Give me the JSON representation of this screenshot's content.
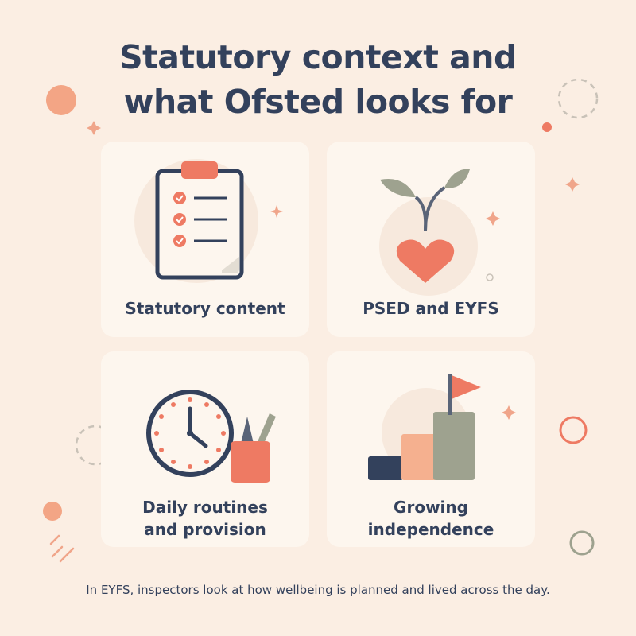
{
  "title_line1": "Statutory context and",
  "title_line2": "what Ofsted looks for",
  "cards": [
    {
      "label": "Statutory content",
      "icon": "clipboard-checklist-icon"
    },
    {
      "label": "PSED and EYFS",
      "icon": "sprout-heart-icon"
    },
    {
      "label_line1": "Daily routines",
      "label_line2": "and provision",
      "icon": "clock-and-pencil-pot-icon"
    },
    {
      "label_line1": "Growing",
      "label_line2": "independence",
      "icon": "steps-with-flag-icon"
    }
  ],
  "caption": "In EYFS, inspectors look at how wellbeing is planned and lived across the day.",
  "colors": {
    "background": "#fbeee3",
    "card": "#fdf6ee",
    "navy": "#33415c",
    "coral": "#ee7a63",
    "peach": "#f5b08f",
    "sage": "#9ea28f"
  }
}
